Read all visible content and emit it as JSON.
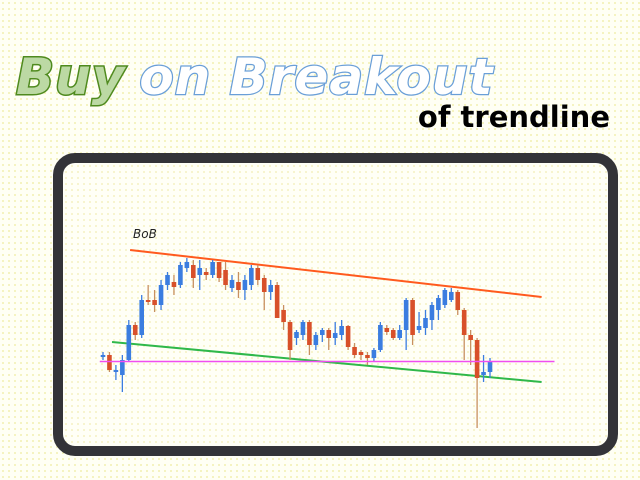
{
  "title": {
    "word1": "Buy",
    "word2": "on Breakout",
    "subtitle": "of trendline"
  },
  "colors": {
    "bull": "#3b7de0",
    "bear": "#d8502a",
    "wick_bull": "#3b7de0",
    "wick_bear": "#c89060",
    "resistance": "#ff5a1e",
    "support": "#2fb84a",
    "level": "#f04ef0"
  },
  "chart_data": {
    "type": "candlestick",
    "title": "",
    "xlabel": "",
    "ylabel": "",
    "grid": false,
    "annotation": "BoB",
    "ohlc": [
      [
        83,
        88,
        80,
        85
      ],
      [
        85,
        88,
        68,
        70
      ],
      [
        68,
        75,
        60,
        70
      ],
      [
        65,
        85,
        48,
        80
      ],
      [
        80,
        120,
        78,
        115
      ],
      [
        115,
        118,
        100,
        105
      ],
      [
        105,
        145,
        102,
        140
      ],
      [
        140,
        155,
        135,
        138
      ],
      [
        140,
        150,
        128,
        135
      ],
      [
        135,
        160,
        130,
        155
      ],
      [
        155,
        168,
        150,
        165
      ],
      [
        158,
        165,
        145,
        153
      ],
      [
        155,
        178,
        152,
        175
      ],
      [
        172,
        182,
        168,
        178
      ],
      [
        175,
        180,
        152,
        162
      ],
      [
        165,
        180,
        150,
        172
      ],
      [
        168,
        172,
        160,
        165
      ],
      [
        165,
        180,
        162,
        178
      ],
      [
        178,
        178,
        158,
        162
      ],
      [
        170,
        178,
        150,
        155
      ],
      [
        152,
        165,
        148,
        160
      ],
      [
        158,
        168,
        142,
        150
      ],
      [
        150,
        165,
        140,
        160
      ],
      [
        155,
        175,
        150,
        172
      ],
      [
        172,
        175,
        155,
        160
      ],
      [
        162,
        165,
        130,
        148
      ],
      [
        148,
        160,
        140,
        155
      ],
      [
        155,
        158,
        122,
        122
      ],
      [
        130,
        135,
        110,
        118
      ],
      [
        118,
        120,
        80,
        90
      ],
      [
        102,
        110,
        95,
        108
      ],
      [
        105,
        120,
        100,
        118
      ],
      [
        118,
        120,
        85,
        95
      ],
      [
        95,
        108,
        90,
        105
      ],
      [
        105,
        112,
        98,
        110
      ],
      [
        110,
        112,
        90,
        102
      ],
      [
        102,
        118,
        95,
        107
      ],
      [
        105,
        120,
        100,
        114
      ],
      [
        114,
        115,
        90,
        93
      ],
      [
        93,
        97,
        82,
        85
      ],
      [
        88,
        90,
        80,
        85
      ],
      [
        85,
        88,
        75,
        82
      ],
      [
        82,
        92,
        78,
        90
      ],
      [
        90,
        118,
        88,
        115
      ],
      [
        112,
        115,
        105,
        108
      ],
      [
        110,
        112,
        100,
        102
      ],
      [
        102,
        115,
        100,
        110
      ],
      [
        110,
        142,
        90,
        140
      ],
      [
        140,
        142,
        95,
        105
      ],
      [
        110,
        128,
        107,
        114
      ],
      [
        112,
        130,
        105,
        122
      ],
      [
        120,
        138,
        110,
        135
      ],
      [
        130,
        145,
        120,
        142
      ],
      [
        135,
        152,
        132,
        150
      ],
      [
        140,
        152,
        138,
        148
      ],
      [
        148,
        150,
        125,
        130
      ],
      [
        130,
        132,
        80,
        105
      ],
      [
        105,
        110,
        75,
        100
      ],
      [
        100,
        102,
        12,
        62
      ],
      [
        65,
        85,
        58,
        68
      ],
      [
        68,
        82,
        62,
        78
      ]
    ],
    "lines": [
      {
        "role": "resistance",
        "from": [
          4.2,
          190
        ],
        "to": [
          68,
          143
        ]
      },
      {
        "role": "support",
        "from": [
          1.4,
          98
        ],
        "to": [
          68,
          58
        ]
      },
      {
        "role": "horizontal-level",
        "from": [
          -0.5,
          78.5
        ],
        "to": [
          70,
          78.5
        ]
      }
    ]
  }
}
